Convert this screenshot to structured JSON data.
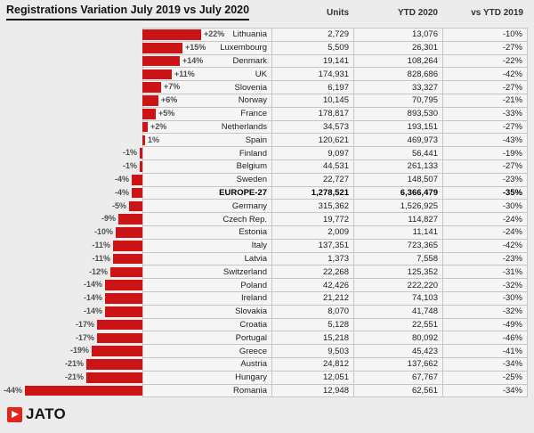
{
  "title": "Registrations Variation July 2019 vs July 2020",
  "columns": {
    "units": "Units",
    "ytd_2020": "YTD 2020",
    "vs_ytd_2019": "vs YTD 2019"
  },
  "logo": {
    "text": "JATO"
  },
  "colors": {
    "bar": "#cc1416",
    "logo_red": "#e1251b"
  },
  "rows": [
    {
      "country": "Lithuania",
      "variation": 22,
      "variation_label": "+22%",
      "units": "2,729",
      "ytd_2020": "13,076",
      "vs_ytd_2019": "-10%",
      "bold": false
    },
    {
      "country": "Luxembourg",
      "variation": 15,
      "variation_label": "+15%",
      "units": "5,509",
      "ytd_2020": "26,301",
      "vs_ytd_2019": "-27%",
      "bold": false
    },
    {
      "country": "Denmark",
      "variation": 14,
      "variation_label": "+14%",
      "units": "19,141",
      "ytd_2020": "108,264",
      "vs_ytd_2019": "-22%",
      "bold": false
    },
    {
      "country": "UK",
      "variation": 11,
      "variation_label": "+11%",
      "units": "174,931",
      "ytd_2020": "828,686",
      "vs_ytd_2019": "-42%",
      "bold": false
    },
    {
      "country": "Slovenia",
      "variation": 7,
      "variation_label": "+7%",
      "units": "6,197",
      "ytd_2020": "33,327",
      "vs_ytd_2019": "-27%",
      "bold": false
    },
    {
      "country": "Norway",
      "variation": 6,
      "variation_label": "+6%",
      "units": "10,145",
      "ytd_2020": "70,795",
      "vs_ytd_2019": "-21%",
      "bold": false
    },
    {
      "country": "France",
      "variation": 5,
      "variation_label": "+5%",
      "units": "178,817",
      "ytd_2020": "893,530",
      "vs_ytd_2019": "-33%",
      "bold": false
    },
    {
      "country": "Netherlands",
      "variation": 2,
      "variation_label": "+2%",
      "units": "34,573",
      "ytd_2020": "193,151",
      "vs_ytd_2019": "-27%",
      "bold": false
    },
    {
      "country": "Spain",
      "variation": 1,
      "variation_label": "1%",
      "units": "120,621",
      "ytd_2020": "469,973",
      "vs_ytd_2019": "-43%",
      "bold": false
    },
    {
      "country": "Finland",
      "variation": -1,
      "variation_label": "-1%",
      "units": "9,097",
      "ytd_2020": "56,441",
      "vs_ytd_2019": "-19%",
      "bold": false
    },
    {
      "country": "Belgium",
      "variation": -1,
      "variation_label": "-1%",
      "units": "44,531",
      "ytd_2020": "261,133",
      "vs_ytd_2019": "-27%",
      "bold": false
    },
    {
      "country": "Sweden",
      "variation": -4,
      "variation_label": "-4%",
      "units": "22,727",
      "ytd_2020": "148,507",
      "vs_ytd_2019": "-23%",
      "bold": false
    },
    {
      "country": "EUROPE-27",
      "variation": -4,
      "variation_label": "-4%",
      "units": "1,278,521",
      "ytd_2020": "6,366,479",
      "vs_ytd_2019": "-35%",
      "bold": true
    },
    {
      "country": "Germany",
      "variation": -5,
      "variation_label": "-5%",
      "units": "315,362",
      "ytd_2020": "1,526,925",
      "vs_ytd_2019": "-30%",
      "bold": false
    },
    {
      "country": "Czech Rep.",
      "variation": -9,
      "variation_label": "-9%",
      "units": "19,772",
      "ytd_2020": "114,827",
      "vs_ytd_2019": "-24%",
      "bold": false
    },
    {
      "country": "Estonia",
      "variation": -10,
      "variation_label": "-10%",
      "units": "2,009",
      "ytd_2020": "11,141",
      "vs_ytd_2019": "-24%",
      "bold": false
    },
    {
      "country": "Italy",
      "variation": -11,
      "variation_label": "-11%",
      "units": "137,351",
      "ytd_2020": "723,365",
      "vs_ytd_2019": "-42%",
      "bold": false
    },
    {
      "country": "Latvia",
      "variation": -11,
      "variation_label": "-11%",
      "units": "1,373",
      "ytd_2020": "7,558",
      "vs_ytd_2019": "-23%",
      "bold": false
    },
    {
      "country": "Switzerland",
      "variation": -12,
      "variation_label": "-12%",
      "units": "22,268",
      "ytd_2020": "125,352",
      "vs_ytd_2019": "-31%",
      "bold": false
    },
    {
      "country": "Poland",
      "variation": -14,
      "variation_label": "-14%",
      "units": "42,426",
      "ytd_2020": "222,220",
      "vs_ytd_2019": "-32%",
      "bold": false
    },
    {
      "country": "Ireland",
      "variation": -14,
      "variation_label": "-14%",
      "units": "21,212",
      "ytd_2020": "74,103",
      "vs_ytd_2019": "-30%",
      "bold": false
    },
    {
      "country": "Slovakia",
      "variation": -14,
      "variation_label": "-14%",
      "units": "8,070",
      "ytd_2020": "41,748",
      "vs_ytd_2019": "-32%",
      "bold": false
    },
    {
      "country": "Croatia",
      "variation": -17,
      "variation_label": "-17%",
      "units": "5,128",
      "ytd_2020": "22,551",
      "vs_ytd_2019": "-49%",
      "bold": false
    },
    {
      "country": "Portugal",
      "variation": -17,
      "variation_label": "-17%",
      "units": "15,218",
      "ytd_2020": "80,092",
      "vs_ytd_2019": "-46%",
      "bold": false
    },
    {
      "country": "Greece",
      "variation": -19,
      "variation_label": "-19%",
      "units": "9,503",
      "ytd_2020": "45,423",
      "vs_ytd_2019": "-41%",
      "bold": false
    },
    {
      "country": "Austria",
      "variation": -21,
      "variation_label": "-21%",
      "units": "24,812",
      "ytd_2020": "137,662",
      "vs_ytd_2019": "-34%",
      "bold": false
    },
    {
      "country": "Hungary",
      "variation": -21,
      "variation_label": "-21%",
      "units": "12,051",
      "ytd_2020": "67,767",
      "vs_ytd_2019": "-25%",
      "bold": false
    },
    {
      "country": "Romania",
      "variation": -44,
      "variation_label": "-44%",
      "units": "12,948",
      "ytd_2020": "62,561",
      "vs_ytd_2019": "-34%",
      "bold": false
    }
  ],
  "chart_data": {
    "type": "bar",
    "orientation": "horizontal",
    "title": "Registrations Variation July 2019 vs July 2020",
    "categories": [
      "Lithuania",
      "Luxembourg",
      "Denmark",
      "UK",
      "Slovenia",
      "Norway",
      "France",
      "Netherlands",
      "Spain",
      "Finland",
      "Belgium",
      "Sweden",
      "EUROPE-27",
      "Germany",
      "Czech Rep.",
      "Estonia",
      "Italy",
      "Latvia",
      "Switzerland",
      "Poland",
      "Ireland",
      "Slovakia",
      "Croatia",
      "Portugal",
      "Greece",
      "Austria",
      "Hungary",
      "Romania"
    ],
    "series": [
      {
        "name": "Variation July 2019 vs July 2020 (%)",
        "values": [
          22,
          15,
          14,
          11,
          7,
          6,
          5,
          2,
          1,
          -1,
          -1,
          -4,
          -4,
          -5,
          -9,
          -10,
          -11,
          -11,
          -12,
          -14,
          -14,
          -14,
          -17,
          -17,
          -19,
          -21,
          -21,
          -44
        ]
      },
      {
        "name": "Units",
        "values": [
          2729,
          5509,
          19141,
          174931,
          6197,
          10145,
          178817,
          34573,
          120621,
          9097,
          44531,
          22727,
          1278521,
          315362,
          19772,
          2009,
          137351,
          1373,
          22268,
          42426,
          21212,
          8070,
          5128,
          15218,
          9503,
          24812,
          12051,
          12948
        ]
      },
      {
        "name": "YTD 2020",
        "values": [
          13076,
          26301,
          108264,
          828686,
          33327,
          70795,
          893530,
          193151,
          469973,
          56441,
          261133,
          148507,
          6366479,
          1526925,
          114827,
          11141,
          723365,
          7558,
          125352,
          222220,
          74103,
          41748,
          22551,
          80092,
          45423,
          137662,
          67767,
          62561
        ]
      },
      {
        "name": "vs YTD 2019 (%)",
        "values": [
          -10,
          -27,
          -22,
          -42,
          -27,
          -21,
          -33,
          -27,
          -43,
          -19,
          -27,
          -23,
          -35,
          -30,
          -24,
          -24,
          -42,
          -23,
          -31,
          -32,
          -30,
          -32,
          -49,
          -46,
          -41,
          -34,
          -25,
          -34
        ]
      }
    ],
    "bar_color": "#cc1416",
    "grid": true,
    "legend": false,
    "xlim_percent": [
      -44,
      22
    ]
  }
}
